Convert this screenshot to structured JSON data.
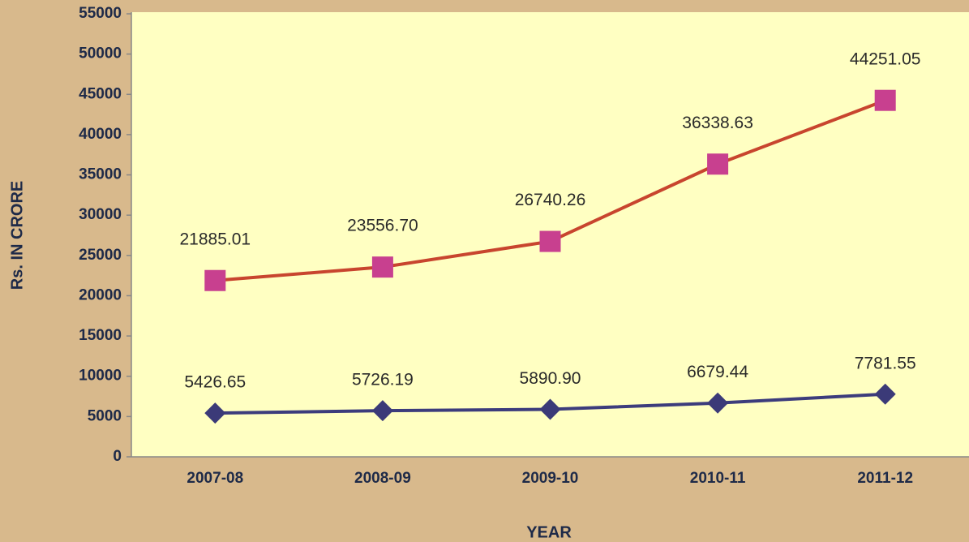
{
  "chart_data": {
    "type": "line",
    "x_label": "YEAR",
    "y_label": "Rs. IN CRORE",
    "categories": [
      "2007-08",
      "2008-09",
      "2009-10",
      "2010-11",
      "2011-12"
    ],
    "series": [
      {
        "color": "#c8452e",
        "marker_color": "#c8408f",
        "marker": "square",
        "values": [
          21885.01,
          23556.7,
          26740.26,
          36338.63,
          44251.05
        ],
        "value_labels": [
          "21885.01",
          "23556.70",
          "26740.26",
          "36338.63",
          "44251.05"
        ]
      },
      {
        "color": "#3c3c7c",
        "marker_color": "#3b3a78",
        "marker": "diamond",
        "values": [
          5426.65,
          5726.19,
          5890.9,
          6679.44,
          7781.55
        ],
        "value_labels": [
          "5426.65",
          "5726.19",
          "5890.90",
          "6679.44",
          "7781.55"
        ]
      }
    ],
    "ylim": [
      0,
      55000
    ],
    "yticks": [
      0,
      5000,
      10000,
      15000,
      20000,
      25000,
      30000,
      35000,
      40000,
      45000,
      50000,
      55000
    ],
    "grid": false
  }
}
